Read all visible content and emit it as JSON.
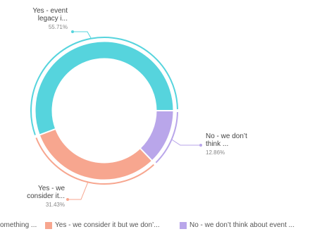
{
  "chart_data": {
    "type": "pie",
    "series": [
      {
        "label_line1": "Yes - event",
        "label_line2": "legacy i...",
        "value": 55.71,
        "value_label": "55.71%",
        "color": "#56d4dd",
        "legend": "Yes - event legacy is something ..."
      },
      {
        "label_line1": "No - we don’t",
        "label_line2": "think ...",
        "value": 12.86,
        "value_label": "12.86%",
        "color": "#b9a6ea",
        "legend": "No - we don’t think about event ..."
      },
      {
        "label_line1": "Yes - we",
        "label_line2": "consider it...",
        "value": 31.43,
        "value_label": "31.43%",
        "color": "#f7a68f",
        "legend": "Yes - we consider it but we don’..."
      }
    ]
  },
  "legend": {
    "item1": "omething ...",
    "item2": "Yes - we consider it but we don’...",
    "item3": "No - we don’t think about event ..."
  }
}
